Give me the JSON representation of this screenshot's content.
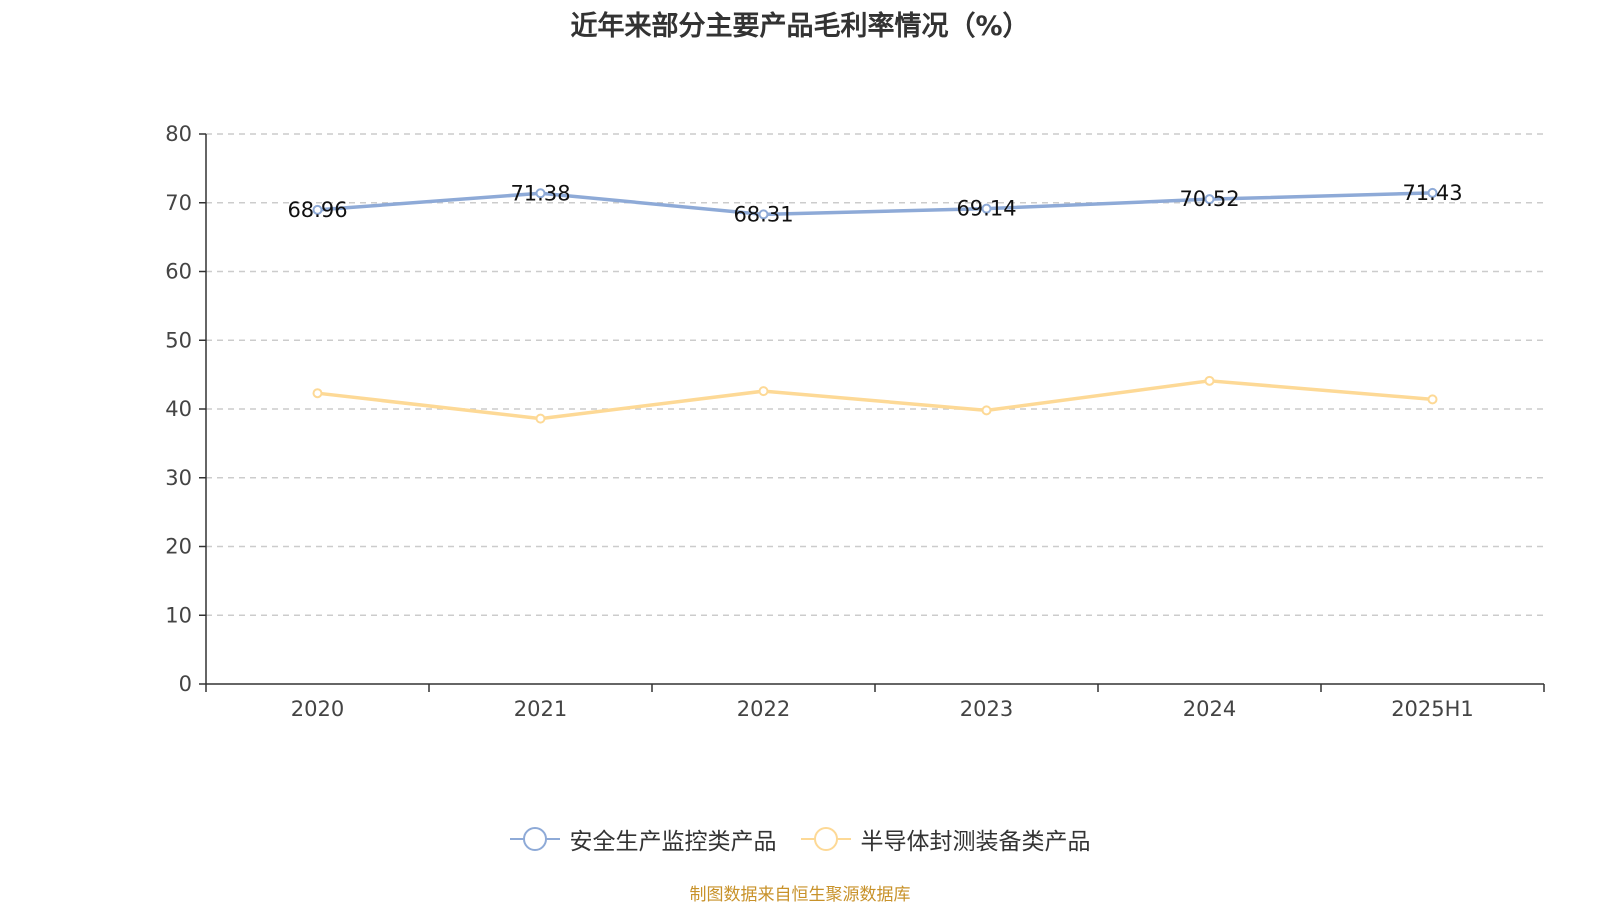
{
  "chart_data": {
    "type": "line",
    "title": "近年来部分主要产品毛利率情况（%）",
    "categories": [
      "2020",
      "2021",
      "2022",
      "2023",
      "2024",
      "2025H1"
    ],
    "ylim": [
      0,
      80
    ],
    "yticks": [
      "0",
      "10",
      "20",
      "30",
      "40",
      "50",
      "60",
      "70",
      "80"
    ],
    "grid": true,
    "legend_position": "bottom",
    "series": [
      {
        "name": "安全生产监控类产品",
        "values": [
          68.96,
          71.38,
          68.31,
          69.14,
          70.52,
          71.43
        ],
        "labels": [
          "68.96",
          "71.38",
          "68.31",
          "69.14",
          "70.52",
          "71.43"
        ],
        "color": "#8eaad7"
      },
      {
        "name": "半导体封测装备类产品",
        "values": [
          42.3,
          38.6,
          42.6,
          39.8,
          44.1,
          41.4
        ],
        "color": "#fdd996"
      }
    ]
  },
  "source_note": "制图数据来自恒生聚源数据库"
}
